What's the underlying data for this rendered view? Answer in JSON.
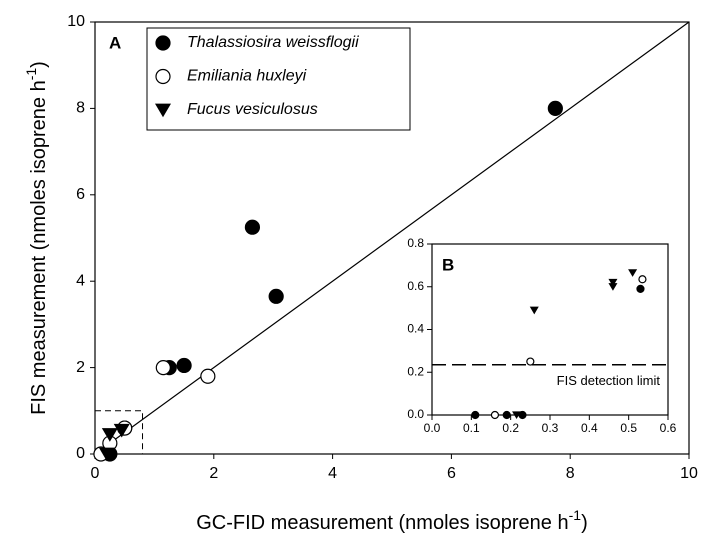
{
  "chart_data": [
    {
      "type": "scatter",
      "panel": "A",
      "xlabel": [
        "GC-FID measurement (nmoles isoprene h",
        "-1",
        ")"
      ],
      "ylabel": [
        "FIS measurement (nmoles isoprene h",
        "-1",
        ")"
      ],
      "xlim": [
        0,
        10
      ],
      "ylim": [
        0,
        10
      ],
      "xticks": [
        0,
        2,
        4,
        6,
        8,
        10
      ],
      "yticks": [
        0,
        2,
        4,
        6,
        8,
        10
      ],
      "legend": "upper left",
      "zoom_box": {
        "x": [
          0,
          0.8
        ],
        "y": [
          0,
          1.0
        ]
      },
      "series": [
        {
          "name": "Thalassiosira weissflogii",
          "marker": "circle",
          "color": "#000000",
          "x": [
            7.75,
            2.65,
            3.05,
            1.5,
            1.25,
            0.25,
            0.5
          ],
          "y": [
            8.0,
            5.25,
            3.65,
            2.05,
            2.0,
            0.0,
            0.6
          ]
        },
        {
          "name": "Emiliania huxleyi",
          "marker": "open-circle",
          "color": "#000000",
          "x": [
            1.15,
            1.9,
            0.25,
            0.1,
            0.5
          ],
          "y": [
            2.0,
            1.8,
            0.25,
            0.0,
            0.6
          ]
        },
        {
          "name": "Fucus vesiculosus",
          "marker": "triangle-down",
          "color": "#000000",
          "x": [
            0.25,
            0.45,
            0.2
          ],
          "y": [
            0.45,
            0.55,
            0.0
          ]
        }
      ]
    },
    {
      "type": "scatter",
      "panel": "B",
      "xlim": [
        0,
        0.6
      ],
      "ylim": [
        0,
        0.8
      ],
      "xticks": [
        {
          "value": 0,
          "label": "0.0"
        },
        {
          "value": 0.1,
          "label": "0.1"
        },
        {
          "value": 0.2,
          "label": "0.2"
        },
        {
          "value": 0.3,
          "label": "0.3"
        },
        {
          "value": 0.4,
          "label": "0.4"
        },
        {
          "value": 0.5,
          "label": "0.5"
        },
        {
          "value": 0.6,
          "label": "0.6"
        }
      ],
      "yticks": [
        {
          "value": 0,
          "label": "0.0"
        },
        {
          "value": 0.2,
          "label": "0.2"
        },
        {
          "value": 0.4,
          "label": "0.4"
        },
        {
          "value": 0.6,
          "label": "0.6"
        },
        {
          "value": 0.8,
          "label": "0.8"
        }
      ],
      "hline": {
        "value": 0.235,
        "label": "FIS detection limit"
      },
      "series": [
        {
          "marker": "circle",
          "color": "#000000",
          "x": [
            0.11,
            0.19,
            0.23,
            0.53
          ],
          "y": [
            0.0,
            0.0,
            0.0,
            0.59
          ]
        },
        {
          "marker": "open-circle",
          "color": "#000000",
          "x": [
            0.16,
            0.25,
            0.535
          ],
          "y": [
            0.0,
            0.25,
            0.635
          ]
        },
        {
          "marker": "triangle-down",
          "color": "#000000",
          "x": [
            0.215,
            0.26,
            0.46,
            0.46,
            0.51
          ],
          "y": [
            0.0,
            0.49,
            0.6,
            0.62,
            0.665
          ]
        }
      ]
    }
  ]
}
